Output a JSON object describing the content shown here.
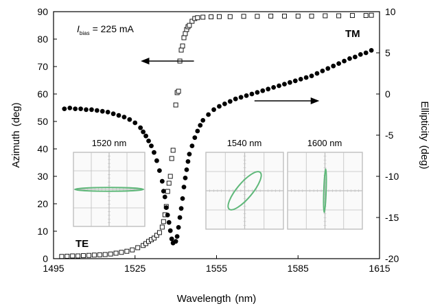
{
  "chart_data": {
    "type": "scatter",
    "xlabel": "Wavelength",
    "xlabel_unit": "(nm)",
    "ylabel_left": "Azimuth",
    "ylabel_left_unit": "(deg)",
    "ylabel_right": "Ellipticity",
    "ylabel_right_unit": "(deg)",
    "xlim": [
      1495,
      1615
    ],
    "ylim_left": [
      0,
      90
    ],
    "ylim_right": [
      -20,
      10
    ],
    "x_ticks": [
      1495,
      1525,
      1555,
      1585,
      1615
    ],
    "y_left_ticks": [
      0,
      10,
      20,
      30,
      40,
      50,
      60,
      70,
      80,
      90
    ],
    "y_right_ticks": [
      -20,
      -15,
      -10,
      -5,
      0,
      5,
      10
    ],
    "grid": false,
    "bias_label": {
      "symbol": "I",
      "subscript": "bias",
      "value": "= 225 mA"
    },
    "mode_labels": [
      "TM",
      "TE"
    ],
    "arrows": [
      {
        "direction": "left",
        "points_to": "Azimuth axis",
        "at": [
          1553,
          72
        ]
      },
      {
        "direction": "right",
        "points_to": "Ellipticity axis",
        "at": [
          1572,
          58
        ]
      }
    ],
    "series": [
      {
        "axis": "left",
        "marker": "open-square",
        "points": [
          [
            1498,
            0.8
          ],
          [
            1500,
            0.9
          ],
          [
            1502,
            1.0
          ],
          [
            1504,
            1.0
          ],
          [
            1506,
            1.1
          ],
          [
            1508,
            1.2
          ],
          [
            1510,
            1.3
          ],
          [
            1512,
            1.4
          ],
          [
            1514,
            1.5
          ],
          [
            1516,
            1.7
          ],
          [
            1518,
            2.0
          ],
          [
            1520,
            2.3
          ],
          [
            1522,
            2.7
          ],
          [
            1524,
            3.2
          ],
          [
            1526,
            4.0
          ],
          [
            1528,
            4.8
          ],
          [
            1529,
            5.5
          ],
          [
            1530,
            6.3
          ],
          [
            1531,
            6.9
          ],
          [
            1532,
            7.5
          ],
          [
            1533,
            8.5
          ],
          [
            1534,
            9.5
          ],
          [
            1535,
            11.5
          ],
          [
            1535.5,
            13.5
          ],
          [
            1536,
            16.0
          ],
          [
            1536.5,
            19.0
          ],
          [
            1537,
            24.5
          ],
          [
            1537.5,
            27.5
          ],
          [
            1538,
            30.0
          ],
          [
            1538.5,
            36.5
          ],
          [
            1539,
            39.5
          ],
          [
            1540,
            56.0
          ],
          [
            1540.5,
            60.5
          ],
          [
            1541,
            61.0
          ],
          [
            1541.5,
            72.0
          ],
          [
            1542,
            76.0
          ],
          [
            1542.5,
            77.5
          ],
          [
            1543,
            80.5
          ],
          [
            1543.5,
            82.0
          ],
          [
            1544,
            83.5
          ],
          [
            1544.5,
            84.5
          ],
          [
            1545,
            85.0
          ],
          [
            1546,
            86.5
          ],
          [
            1547,
            87.5
          ],
          [
            1548,
            87.8
          ],
          [
            1550,
            88.0
          ],
          [
            1553,
            88.1
          ],
          [
            1556,
            88.2
          ],
          [
            1560,
            88.2
          ],
          [
            1565,
            88.3
          ],
          [
            1570,
            88.3
          ],
          [
            1575,
            88.4
          ],
          [
            1580,
            88.4
          ],
          [
            1585,
            88.4
          ],
          [
            1590,
            88.4
          ],
          [
            1595,
            88.5
          ],
          [
            1600,
            88.5
          ],
          [
            1605,
            88.6
          ],
          [
            1610,
            88.6
          ],
          [
            1612,
            88.7
          ]
        ]
      },
      {
        "axis": "right",
        "marker": "filled-circle",
        "points": [
          [
            1499,
            -1.8
          ],
          [
            1501,
            -1.7
          ],
          [
            1503,
            -1.8
          ],
          [
            1505,
            -1.8
          ],
          [
            1507,
            -1.9
          ],
          [
            1509,
            -1.9
          ],
          [
            1511,
            -2.0
          ],
          [
            1513,
            -2.1
          ],
          [
            1515,
            -2.2
          ],
          [
            1517,
            -2.4
          ],
          [
            1519,
            -2.6
          ],
          [
            1521,
            -2.8
          ],
          [
            1523,
            -3.1
          ],
          [
            1525,
            -3.5
          ],
          [
            1527,
            -4.1
          ],
          [
            1528,
            -4.6
          ],
          [
            1529,
            -5.1
          ],
          [
            1530,
            -5.7
          ],
          [
            1531,
            -6.3
          ],
          [
            1532,
            -7.1
          ],
          [
            1533,
            -8.1
          ],
          [
            1534,
            -9.3
          ],
          [
            1535,
            -10.6
          ],
          [
            1535.5,
            -11.8
          ],
          [
            1536,
            -12.5
          ],
          [
            1536.5,
            -13.8
          ],
          [
            1537,
            -14.7
          ],
          [
            1537.5,
            -15.6
          ],
          [
            1538,
            -16.6
          ],
          [
            1538.5,
            -17.6
          ],
          [
            1539,
            -18.1
          ],
          [
            1540,
            -17.9
          ],
          [
            1540.5,
            -17.3
          ],
          [
            1541,
            -16.2
          ],
          [
            1541.5,
            -15.0
          ],
          [
            1542,
            -13.9
          ],
          [
            1542.5,
            -12.7
          ],
          [
            1543,
            -11.3
          ],
          [
            1543.5,
            -10.2
          ],
          [
            1544,
            -9.2
          ],
          [
            1544.5,
            -8.2
          ],
          [
            1545,
            -7.3
          ],
          [
            1546,
            -6.3
          ],
          [
            1547,
            -5.3
          ],
          [
            1548,
            -4.5
          ],
          [
            1549,
            -3.8
          ],
          [
            1550,
            -3.2
          ],
          [
            1552,
            -2.5
          ],
          [
            1554,
            -1.9
          ],
          [
            1556,
            -1.5
          ],
          [
            1558,
            -1.2
          ],
          [
            1560,
            -0.9
          ],
          [
            1562,
            -0.6
          ],
          [
            1564,
            -0.4
          ],
          [
            1566,
            -0.2
          ],
          [
            1568,
            0.0
          ],
          [
            1570,
            0.2
          ],
          [
            1572,
            0.4
          ],
          [
            1574,
            0.6
          ],
          [
            1576,
            0.8
          ],
          [
            1578,
            1.0
          ],
          [
            1580,
            1.2
          ],
          [
            1582,
            1.4
          ],
          [
            1584,
            1.6
          ],
          [
            1586,
            1.8
          ],
          [
            1588,
            2.0
          ],
          [
            1590,
            2.2
          ],
          [
            1592,
            2.5
          ],
          [
            1594,
            2.8
          ],
          [
            1596,
            3.1
          ],
          [
            1598,
            3.4
          ],
          [
            1600,
            3.7
          ],
          [
            1602,
            4.0
          ],
          [
            1604,
            4.3
          ],
          [
            1606,
            4.5
          ],
          [
            1608,
            4.8
          ],
          [
            1610,
            5.0
          ],
          [
            1612,
            5.3
          ]
        ]
      }
    ],
    "insets": [
      {
        "label": "1520 nm",
        "ellipse": {
          "major": 0.96,
          "minor": 0.05,
          "angle_deg": 0
        }
      },
      {
        "label": "1540 nm",
        "ellipse": {
          "major": 0.62,
          "minor": 0.2,
          "angle_deg": -50
        }
      },
      {
        "label": "1600 nm",
        "ellipse": {
          "major": 0.58,
          "minor": 0.03,
          "angle_deg": -88
        }
      }
    ],
    "colors": {
      "marker": "#000000",
      "inset_trace": "#5fb87a",
      "inset_grid": "#bfbfbf"
    }
  }
}
